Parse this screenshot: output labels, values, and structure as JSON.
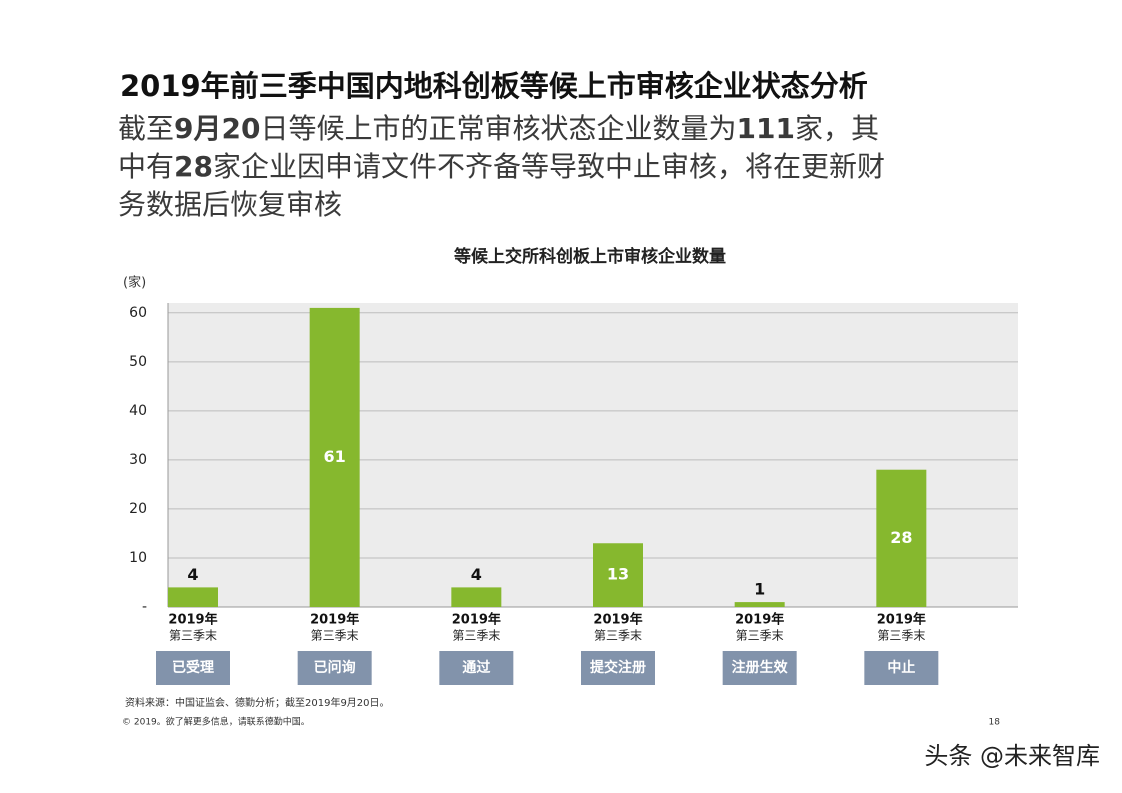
{
  "title": "2019年前三季中国内地科创板等候上市审核企业状态分析",
  "subtitle_lines": [
    [
      "截至",
      "9月20",
      "日等候上市的正常审核状态企业数量为",
      "111",
      "家，其"
    ],
    [
      "中有",
      "28",
      "家企业因申请文件不齐备等导致中止审核，将在更新财"
    ],
    [
      "务数据后恢复审核"
    ]
  ],
  "chart_data": {
    "type": "bar",
    "title": "等候上交所科创板上市审核企业数量",
    "y_label": "(家)",
    "categories": [
      [
        "2019年",
        "第三季末"
      ],
      [
        "2019年",
        "第三季末"
      ],
      [
        "2019年",
        "第三季末"
      ],
      [
        "2019年",
        "第三季末"
      ],
      [
        "2019年",
        "第三季末"
      ],
      [
        "2019年",
        "第三季末"
      ]
    ],
    "status_labels": [
      "已受理",
      "已问询",
      "通过",
      "提交注册",
      "注册生效",
      "中止"
    ],
    "values": [
      4,
      61,
      4,
      13,
      1,
      28
    ],
    "color": "#86b82e",
    "ylim": [
      0,
      62
    ],
    "yticks": [
      {
        "value": 0,
        "label": "-"
      },
      10,
      20,
      30,
      40,
      50,
      60
    ],
    "grid": true
  },
  "source": "资料来源：中国证监会、德勤分析；截至2019年9月20日。",
  "footer": "© 2019。欲了解更多信息，请联系德勤中国。",
  "page_number": "18",
  "watermark": "头条 @未来智库"
}
